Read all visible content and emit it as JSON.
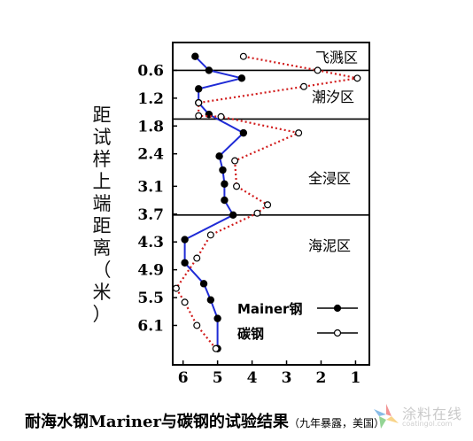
{
  "chart_data": {
    "type": "line",
    "ylabel": "距试样上端距离（米）",
    "x_axis": {
      "reversed": true,
      "ticks": [
        6,
        5,
        4,
        3,
        2,
        1
      ],
      "xlim": [
        6.3,
        0.6
      ]
    },
    "y_axis": {
      "reversed": true,
      "ticks": [
        0.6,
        1.2,
        1.8,
        2.4,
        3.1,
        3.7,
        4.3,
        4.9,
        5.5,
        6.1
      ],
      "ylim": [
        0.0,
        6.95
      ]
    },
    "zones": [
      {
        "label": "飞溅区",
        "from": 0.0,
        "to": 0.6
      },
      {
        "label": "潮汐区",
        "from": 0.6,
        "to": 1.65
      },
      {
        "label": "全浸区",
        "from": 1.65,
        "to": 3.72
      },
      {
        "label": "海泥区",
        "from": 3.72,
        "to": 6.95
      }
    ],
    "zone_boundaries": [
      0.6,
      1.65,
      3.72
    ],
    "legend": {
      "position": "bottom-right"
    },
    "series": [
      {
        "name": "Mainer钢",
        "marker": "filled",
        "color": "#1f2bd6",
        "x": [
          5.65,
          5.25,
          4.3,
          5.55,
          5.55,
          5.25,
          4.25,
          4.95,
          4.85,
          4.8,
          4.8,
          4.55,
          5.95,
          5.95,
          5.4,
          5.2,
          5.0,
          5.0
        ],
        "y": [
          0.3,
          0.6,
          0.77,
          1.0,
          1.3,
          1.55,
          1.95,
          2.45,
          2.75,
          3.05,
          3.4,
          3.72,
          4.25,
          4.75,
          5.2,
          5.55,
          5.95,
          6.6
        ]
      },
      {
        "name": "碳钢",
        "marker": "open",
        "color": "#d11c1c",
        "x": [
          4.25,
          2.1,
          0.95,
          2.5,
          5.55,
          5.55,
          4.9,
          2.65,
          4.5,
          4.45,
          3.55,
          3.85,
          5.2,
          5.6,
          6.2,
          5.95,
          5.6,
          5.05
        ],
        "y": [
          0.3,
          0.6,
          0.77,
          0.95,
          1.3,
          1.58,
          1.6,
          1.95,
          2.55,
          3.1,
          3.5,
          3.68,
          4.15,
          4.65,
          5.3,
          5.6,
          6.1,
          6.6
        ]
      }
    ]
  },
  "caption": {
    "main": "耐海水钢Mariner与碳钢的试验结果",
    "note": "（九年暴露，美国）"
  },
  "watermark": {
    "text": "涂料在线",
    "sub": "coatingol.com"
  }
}
